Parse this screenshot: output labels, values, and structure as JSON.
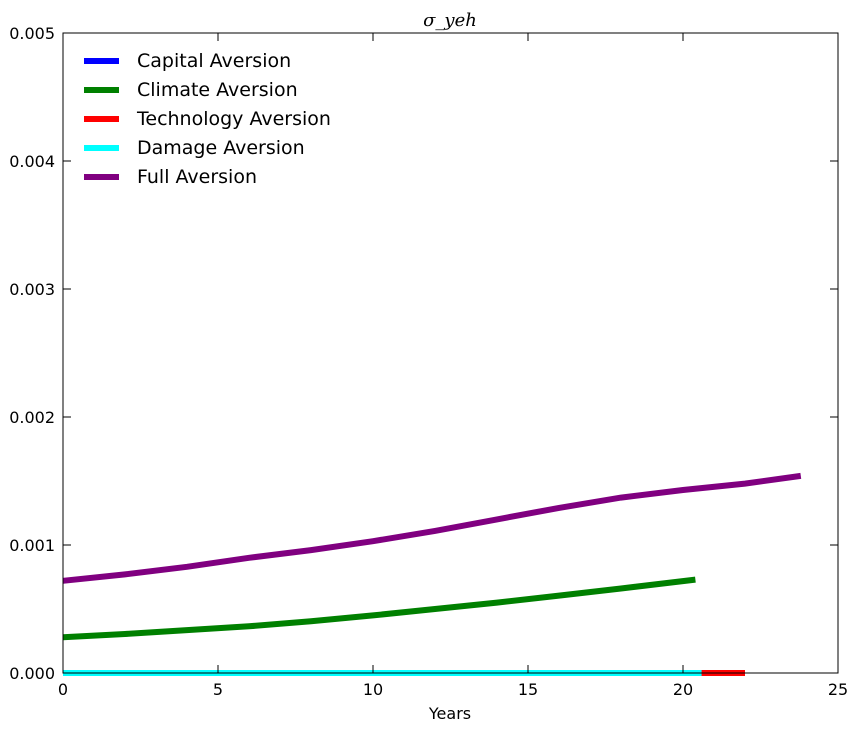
{
  "chart_data": {
    "type": "line",
    "title": "σ_yeh",
    "xlabel": "Years",
    "ylabel": "",
    "xlim": [
      0,
      25
    ],
    "ylim": [
      0,
      0.005
    ],
    "xticks": [
      "0",
      "5",
      "10",
      "15",
      "20",
      "25"
    ],
    "yticks": [
      "0.000",
      "0.001",
      "0.002",
      "0.003",
      "0.004",
      "0.005"
    ],
    "grid": false,
    "legend_position": "top-left",
    "series": [
      {
        "name": "Capital Aversion",
        "color": "#0000ff",
        "x": [
          0,
          20.6
        ],
        "y": [
          0,
          0
        ]
      },
      {
        "name": "Climate Aversion",
        "color": "#008000",
        "x": [
          0,
          2,
          4,
          6,
          8,
          10,
          12,
          14,
          16,
          18,
          20.4
        ],
        "y": [
          0.00028,
          0.000305,
          0.000335,
          0.000365,
          0.000405,
          0.00045,
          0.0005,
          0.00055,
          0.000605,
          0.00066,
          0.00073
        ]
      },
      {
        "name": "Technology Aversion",
        "color": "#ff0000",
        "x": [
          0,
          22
        ],
        "y": [
          0,
          0
        ]
      },
      {
        "name": "Damage Aversion",
        "color": "#00ffff",
        "x": [
          0,
          20.6
        ],
        "y": [
          0,
          0
        ]
      },
      {
        "name": "Full Aversion",
        "color": "#800080",
        "x": [
          0,
          2,
          4,
          6,
          8,
          10,
          12,
          14,
          16,
          18,
          20,
          22,
          23.8
        ],
        "y": [
          0.00072,
          0.00077,
          0.00083,
          0.0009,
          0.00096,
          0.00103,
          0.00111,
          0.0012,
          0.00129,
          0.00137,
          0.00143,
          0.00148,
          0.00154
        ]
      }
    ]
  }
}
